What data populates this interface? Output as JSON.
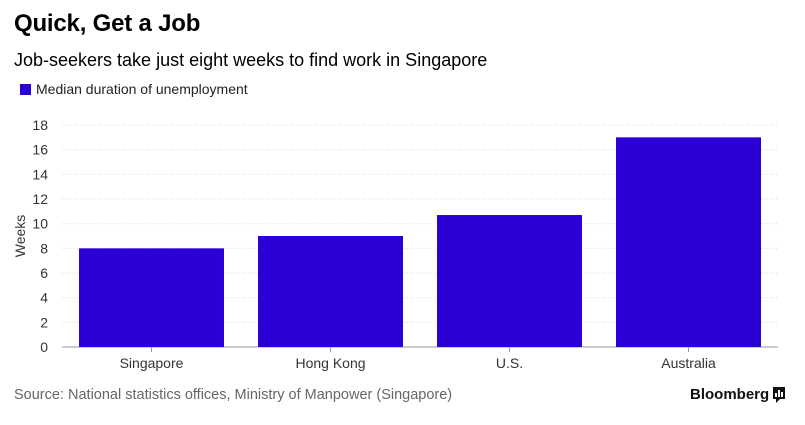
{
  "title": "Quick, Get a Job",
  "subtitle": "Job-seekers take just eight weeks to find work in Singapore",
  "legend_label": "Median duration of unemployment",
  "source": "Source: National statistics offices, Ministry of Manpower (Singapore)",
  "brand": "Bloomberg",
  "colors": {
    "bar": "#2a00d6",
    "grid": "#d9d9d9",
    "axis_text": "#333333"
  },
  "chart_data": {
    "type": "bar",
    "categories": [
      "Singapore",
      "Hong Kong",
      "U.S.",
      "Australia"
    ],
    "series": [
      {
        "name": "Median duration of unemployment",
        "values": [
          8,
          9,
          10.7,
          17
        ]
      }
    ],
    "ylabel": "Weeks",
    "xlabel": "",
    "ylim": [
      0,
      18
    ],
    "yticks": [
      0,
      2,
      4,
      6,
      8,
      10,
      12,
      14,
      16,
      18
    ],
    "grid": true,
    "legend_position": "top-left"
  }
}
